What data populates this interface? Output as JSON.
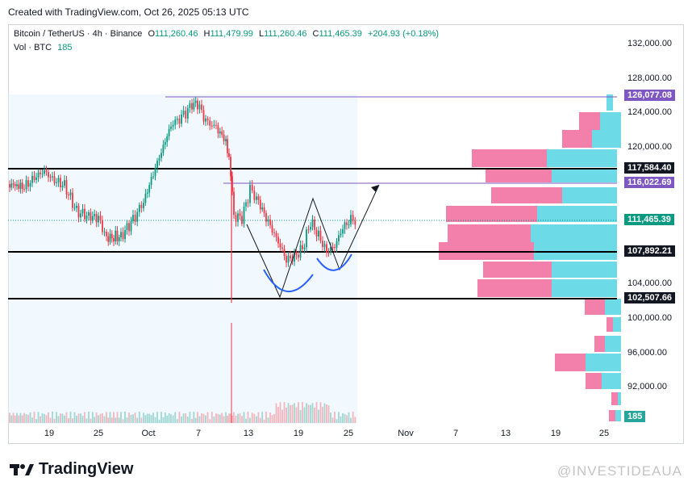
{
  "header": {
    "created_text": "Created with TradingView.com, Oct 26, 2025 05:13 UTC"
  },
  "legend": {
    "symbol": "Bitcoin / TetherUS · 4h · Binance",
    "o_label": "O",
    "o_value": "111,260.46",
    "h_label": "H",
    "h_value": "111,479.99",
    "l_label": "L",
    "l_value": "111,260.46",
    "c_label": "C",
    "c_value": "111,465.39",
    "change": "+204.93 (+0.18%)",
    "vol_label": "Vol · BTC",
    "vol_value": "185"
  },
  "price_axis": {
    "ticks": [
      "132,000.00",
      "128,000.00",
      "124,000.00",
      "120,000.00",
      "104,000.00",
      "100,000.00",
      "96,000.00",
      "92,000.00"
    ],
    "badges": {
      "high": "126,077.08",
      "r1": "117,584.40",
      "r2": "116,022.69",
      "last": "111,465.39",
      "s1": "107,892.21",
      "s2": "102,507.66",
      "vol": "185"
    },
    "colors": {
      "high": "#7e57c2",
      "level": "#131722",
      "last": "#089981",
      "vol": "#26a69a"
    }
  },
  "time_axis": {
    "labels": [
      "19",
      "25",
      "Oct",
      "7",
      "13",
      "19",
      "25",
      "Nov",
      "7",
      "13",
      "19",
      "25"
    ]
  },
  "footer": {
    "brand": "TradingView",
    "watermark": "@INVESTIDEAUA"
  },
  "colors": {
    "up": "#089981",
    "down": "#f23645",
    "vp_up": "#5dd6e6",
    "vp_down": "#f06a9c",
    "curve": "#2962ff"
  }
}
